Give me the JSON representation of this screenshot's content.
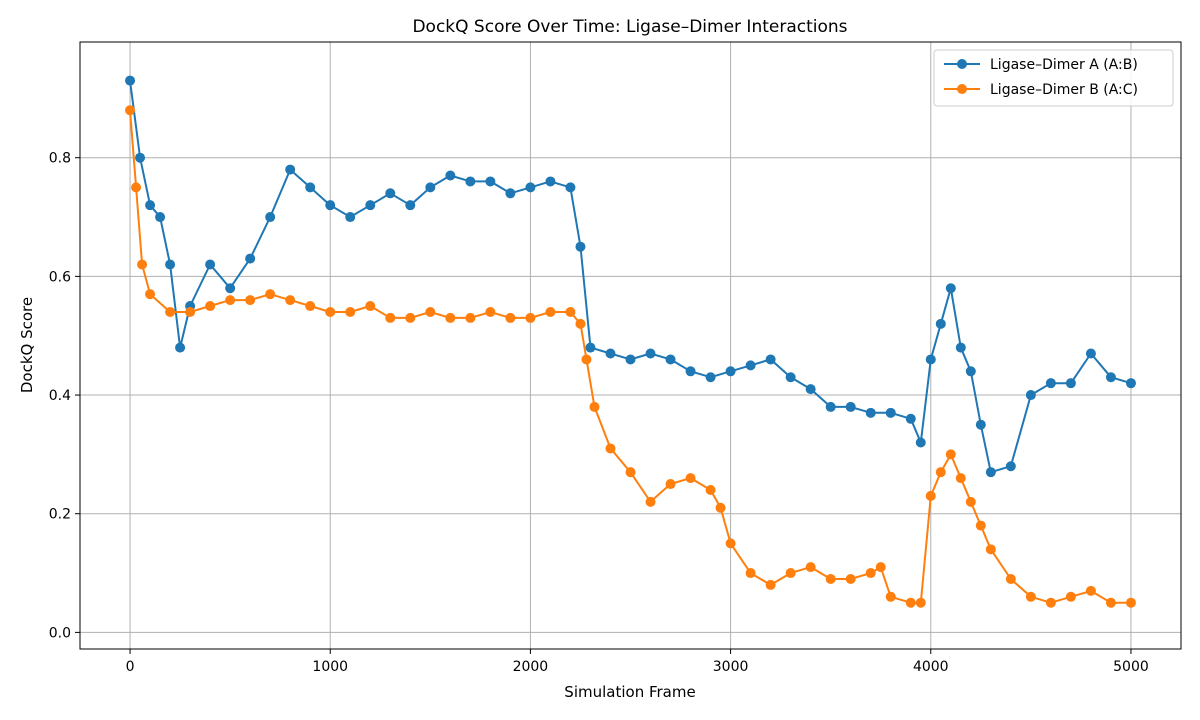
{
  "chart_data": {
    "type": "line",
    "title": "DockQ Score Over Time: Ligase–Dimer Interactions",
    "xlabel": "Simulation Frame",
    "ylabel": "DockQ Score",
    "xlim": [
      -250,
      5250
    ],
    "ylim": [
      -0.028,
      0.995
    ],
    "xticks": [
      0,
      1000,
      2000,
      3000,
      4000,
      5000
    ],
    "xtick_labels": [
      "0",
      "1000",
      "2000",
      "3000",
      "4000",
      "5000"
    ],
    "yticks": [
      0.0,
      0.2,
      0.4,
      0.6,
      0.8
    ],
    "ytick_labels": [
      "0.0",
      "0.2",
      "0.4",
      "0.6",
      "0.8"
    ],
    "grid": true,
    "legend_position": "top-right",
    "series": [
      {
        "name": "Ligase–Dimer A (A:B)",
        "color": "#1f77b4",
        "marker": "circle",
        "x": [
          0,
          50,
          100,
          150,
          200,
          250,
          300,
          400,
          500,
          600,
          700,
          800,
          900,
          1000,
          1100,
          1200,
          1300,
          1400,
          1500,
          1600,
          1700,
          1800,
          1900,
          2000,
          2100,
          2200,
          2250,
          2300,
          2400,
          2500,
          2600,
          2700,
          2800,
          2900,
          3000,
          3100,
          3200,
          3300,
          3400,
          3500,
          3600,
          3700,
          3800,
          3900,
          3950,
          4000,
          4050,
          4100,
          4150,
          4200,
          4250,
          4300,
          4400,
          4500,
          4600,
          4700,
          4800,
          4900,
          5000
        ],
        "y": [
          0.93,
          0.8,
          0.72,
          0.7,
          0.62,
          0.48,
          0.55,
          0.62,
          0.58,
          0.63,
          0.7,
          0.78,
          0.75,
          0.72,
          0.7,
          0.72,
          0.74,
          0.72,
          0.75,
          0.77,
          0.76,
          0.76,
          0.74,
          0.75,
          0.76,
          0.75,
          0.65,
          0.48,
          0.47,
          0.46,
          0.47,
          0.46,
          0.44,
          0.43,
          0.44,
          0.45,
          0.46,
          0.43,
          0.41,
          0.38,
          0.38,
          0.37,
          0.37,
          0.36,
          0.32,
          0.46,
          0.52,
          0.58,
          0.48,
          0.44,
          0.35,
          0.27,
          0.28,
          0.4,
          0.42,
          0.42,
          0.47,
          0.43,
          0.42
        ]
      },
      {
        "name": "Ligase–Dimer B (A:C)",
        "color": "#ff7f0e",
        "marker": "circle",
        "x": [
          0,
          30,
          60,
          100,
          200,
          300,
          400,
          500,
          600,
          700,
          800,
          900,
          1000,
          1100,
          1200,
          1300,
          1400,
          1500,
          1600,
          1700,
          1800,
          1900,
          2000,
          2100,
          2200,
          2250,
          2280,
          2320,
          2400,
          2500,
          2600,
          2700,
          2800,
          2900,
          2950,
          3000,
          3100,
          3200,
          3300,
          3400,
          3500,
          3600,
          3700,
          3750,
          3800,
          3900,
          3950,
          4000,
          4050,
          4100,
          4150,
          4200,
          4250,
          4300,
          4400,
          4500,
          4600,
          4700,
          4800,
          4900,
          5000
        ],
        "y": [
          0.88,
          0.75,
          0.62,
          0.57,
          0.54,
          0.54,
          0.55,
          0.56,
          0.56,
          0.57,
          0.56,
          0.55,
          0.54,
          0.54,
          0.55,
          0.53,
          0.53,
          0.54,
          0.53,
          0.53,
          0.54,
          0.53,
          0.53,
          0.54,
          0.54,
          0.52,
          0.46,
          0.38,
          0.31,
          0.27,
          0.22,
          0.25,
          0.26,
          0.24,
          0.21,
          0.15,
          0.1,
          0.08,
          0.1,
          0.11,
          0.09,
          0.09,
          0.1,
          0.11,
          0.06,
          0.05,
          0.05,
          0.23,
          0.27,
          0.3,
          0.26,
          0.22,
          0.18,
          0.14,
          0.09,
          0.06,
          0.05,
          0.06,
          0.07,
          0.05,
          0.05
        ]
      }
    ]
  }
}
